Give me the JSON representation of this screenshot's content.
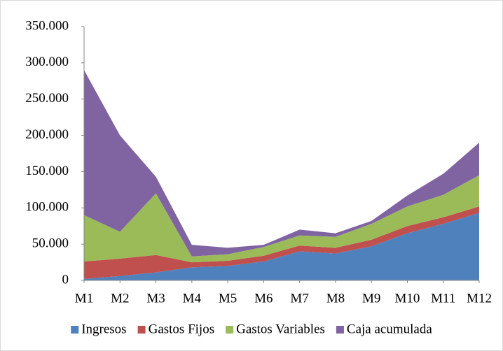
{
  "chart_data": {
    "type": "stacked_area",
    "categories": [
      "M1",
      "M2",
      "M3",
      "M4",
      "M5",
      "M6",
      "M7",
      "M8",
      "M9",
      "M10",
      "M11",
      "M12"
    ],
    "series": [
      {
        "name": "Ingresos",
        "color": "#4f81bd",
        "values": [
          2000,
          6000,
          11000,
          18000,
          20000,
          26000,
          40000,
          37000,
          47000,
          65000,
          78000,
          93000
        ]
      },
      {
        "name": "Gastos Fijos",
        "color": "#c0504d",
        "values": [
          24000,
          24000,
          24000,
          7000,
          7000,
          8000,
          8000,
          8000,
          9000,
          10000,
          9000,
          9000
        ]
      },
      {
        "name": "Gastos Variables",
        "color": "#9bbb59",
        "values": [
          64000,
          37000,
          85000,
          8000,
          9000,
          12000,
          14000,
          15000,
          22000,
          27000,
          31000,
          43000
        ]
      },
      {
        "name": "Caja acumulada",
        "color": "#8064a2",
        "values": [
          200000,
          133000,
          23000,
          16000,
          9000,
          3000,
          8000,
          5000,
          4000,
          15000,
          29000,
          45000
        ]
      }
    ],
    "ylim": [
      0,
      350000
    ],
    "yticks": [
      0,
      {
        "value": 50000,
        "label": "50.000"
      },
      {
        "value": 100000,
        "label": "100.000"
      },
      {
        "value": 150000,
        "label": "150.000"
      },
      {
        "value": 200000,
        "label": "200.000"
      },
      {
        "value": 250000,
        "label": "250.000"
      },
      {
        "value": 300000,
        "label": "300.000"
      },
      {
        "value": 350000,
        "label": "350.000"
      }
    ],
    "legend": "bottom"
  }
}
